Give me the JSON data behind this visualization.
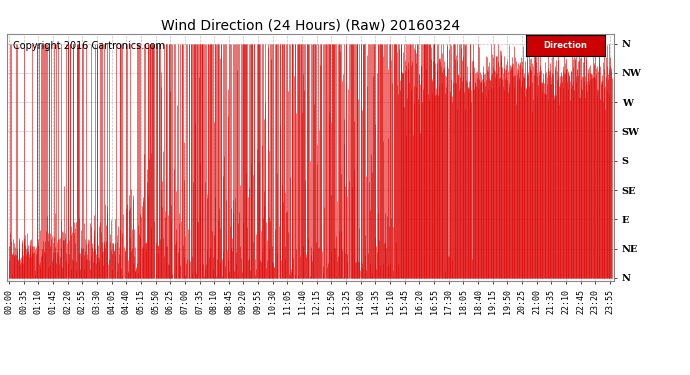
{
  "title": "Wind Direction (24 Hours) (Raw) 20160324",
  "copyright": "Copyright 2016 Cartronics.com",
  "legend_label": "Direction",
  "legend_bg": "#cc0000",
  "legend_text_color": "#ffffff",
  "line_color": "#dd0000",
  "bg_color": "#ffffff",
  "plot_bg": "#ffffff",
  "grid_color": "#999999",
  "ytick_labels": [
    "N",
    "NW",
    "W",
    "SW",
    "S",
    "SE",
    "E",
    "NE",
    "N"
  ],
  "ytick_values": [
    360,
    315,
    270,
    225,
    180,
    135,
    90,
    45,
    0
  ],
  "ylim": [
    -5,
    375
  ],
  "title_fontsize": 10,
  "copyright_fontsize": 7,
  "tick_fontsize": 6,
  "num_points": 1440,
  "seed": 42
}
